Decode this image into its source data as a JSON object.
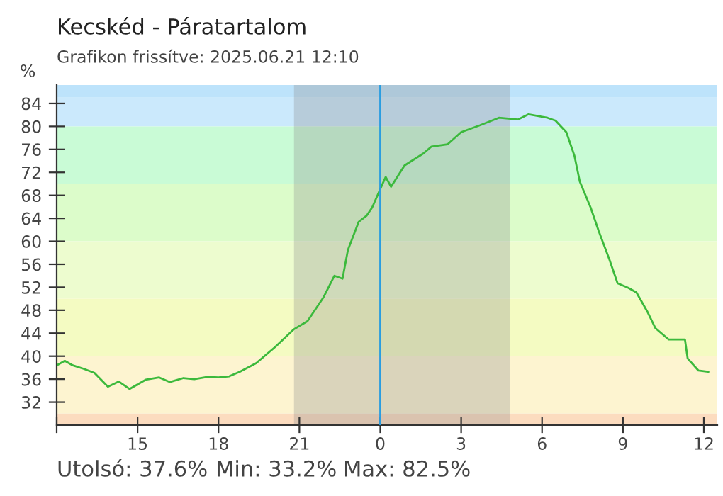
{
  "chart_data": {
    "type": "line",
    "title": "Kecskéd - Páratartalom",
    "subtitle": "Grafikon frissítve: 2025.06.21 12:10",
    "ylabel": "%",
    "series": [
      {
        "color": "#3cb93c",
        "x": [
          "2025-06-20T12:00",
          "2025-06-20T12:18",
          "2025-06-20T12:36",
          "2025-06-20T13:00",
          "2025-06-20T13:24",
          "2025-06-20T13:54",
          "2025-06-20T14:18",
          "2025-06-20T14:42",
          "2025-06-20T15:18",
          "2025-06-20T15:48",
          "2025-06-20T16:12",
          "2025-06-20T16:42",
          "2025-06-20T17:06",
          "2025-06-20T17:36",
          "2025-06-20T18:00",
          "2025-06-20T18:24",
          "2025-06-20T18:48",
          "2025-06-20T19:24",
          "2025-06-20T20:06",
          "2025-06-20T20:48",
          "2025-06-20T21:18",
          "2025-06-20T21:54",
          "2025-06-20T22:18",
          "2025-06-20T22:36",
          "2025-06-20T22:48",
          "2025-06-20T23:12",
          "2025-06-20T23:30",
          "2025-06-20T23:42",
          "2025-06-21T00:00",
          "2025-06-21T00:12",
          "2025-06-21T00:24",
          "2025-06-21T00:54",
          "2025-06-21T01:36",
          "2025-06-21T01:54",
          "2025-06-21T02:30",
          "2025-06-21T03:00",
          "2025-06-21T03:42",
          "2025-06-21T04:24",
          "2025-06-21T05:06",
          "2025-06-21T05:30",
          "2025-06-21T06:12",
          "2025-06-21T06:30",
          "2025-06-21T06:54",
          "2025-06-21T07:12",
          "2025-06-21T07:24",
          "2025-06-21T07:48",
          "2025-06-21T08:06",
          "2025-06-21T08:30",
          "2025-06-21T08:48",
          "2025-06-21T09:12",
          "2025-06-21T09:30",
          "2025-06-21T09:54",
          "2025-06-21T10:12",
          "2025-06-21T10:42",
          "2025-06-21T11:18",
          "2025-06-21T11:24",
          "2025-06-21T11:48",
          "2025-06-21T12:10"
        ],
        "values": [
          38.4,
          39.2,
          38.4,
          37.8,
          37.1,
          34.7,
          35.6,
          34.3,
          35.9,
          36.3,
          35.5,
          36.2,
          36.0,
          36.4,
          36.3,
          36.5,
          37.3,
          38.8,
          41.6,
          44.7,
          46.1,
          50.3,
          54.0,
          53.5,
          58.5,
          63.4,
          64.5,
          65.9,
          69.1,
          71.2,
          69.5,
          73.2,
          75.3,
          76.5,
          76.9,
          79.0,
          80.2,
          81.5,
          81.2,
          82.1,
          81.5,
          81.0,
          79.0,
          74.9,
          70.4,
          65.9,
          61.8,
          56.8,
          52.7,
          51.9,
          51.1,
          47.8,
          44.9,
          42.9,
          42.9,
          39.6,
          37.5,
          37.3
        ]
      }
    ],
    "xlim": [
      "2025-06-20T12:00",
      "2025-06-21T12:30"
    ],
    "xticks": [
      {
        "value": "2025-06-20T12:00",
        "label": null
      },
      {
        "value": "2025-06-20T15:00",
        "label": "15"
      },
      {
        "value": "2025-06-20T18:00",
        "label": "18"
      },
      {
        "value": "2025-06-20T21:00",
        "label": "21"
      },
      {
        "value": "2025-06-21T00:00",
        "label": "0"
      },
      {
        "value": "2025-06-21T03:00",
        "label": "3"
      },
      {
        "value": "2025-06-21T06:00",
        "label": "6"
      },
      {
        "value": "2025-06-21T09:00",
        "label": "9"
      },
      {
        "value": "2025-06-21T12:00",
        "label": "12"
      }
    ],
    "ylim": [
      28,
      87.2
    ],
    "yticks": [
      32,
      36,
      40,
      44,
      48,
      52,
      56,
      60,
      64,
      68,
      72,
      76,
      80,
      84
    ],
    "bands": [
      {
        "axis": "y",
        "from": 85,
        "to": 87.2,
        "color": "#bde3fb"
      },
      {
        "axis": "y",
        "from": 80,
        "to": 85,
        "color": "#cbe9fc"
      },
      {
        "axis": "y",
        "from": 70,
        "to": 80,
        "color": "#c9fbd6"
      },
      {
        "axis": "y",
        "from": 60,
        "to": 70,
        "color": "#dcfcca"
      },
      {
        "axis": "y",
        "from": 50,
        "to": 60,
        "color": "#edfccf"
      },
      {
        "axis": "y",
        "from": 40,
        "to": 50,
        "color": "#f4fbc2"
      },
      {
        "axis": "y",
        "from": 30,
        "to": 40,
        "color": "#fdf4d0"
      },
      {
        "axis": "y",
        "from": 28,
        "to": 30,
        "color": "#fcdcbf"
      },
      {
        "axis": "x",
        "from": "2025-06-20T20:48",
        "to": "2025-06-21T04:48",
        "color": "#8a8a8a"
      }
    ],
    "ref_lines": [
      {
        "axis": "x",
        "value": "2025-06-21T00:00",
        "color": "#2a9de0",
        "line_style": "solid"
      }
    ],
    "annotations": [
      "Utolsó: 37.6%",
      "Min: 33.2%",
      "Max: 82.5%"
    ],
    "grid": false,
    "legend": false,
    "marker": "none",
    "line_style": "solid"
  }
}
